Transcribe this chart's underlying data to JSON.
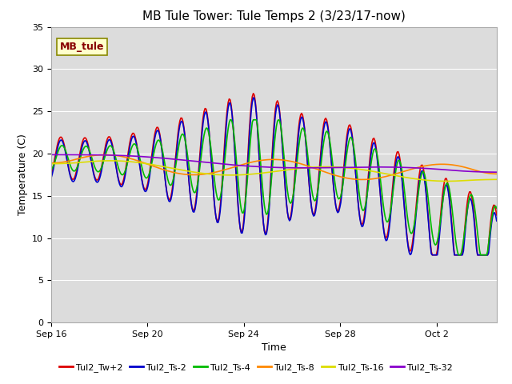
{
  "title": "MB Tule Tower: Tule Temps 2 (3/23/17-now)",
  "xlabel": "Time",
  "ylabel": "Temperature (C)",
  "ylim": [
    0,
    35
  ],
  "yticks": [
    0,
    5,
    10,
    15,
    20,
    25,
    30,
    35
  ],
  "bg_color": "#dcdcdc",
  "fig_color": "#ffffff",
  "mb_tule_label": "MB_tule",
  "mb_tule_color": "#880000",
  "mb_tule_bg": "#ffffcc",
  "mb_tule_border": "#888800",
  "series": [
    {
      "name": "Tul2_Tw+2",
      "color": "#dd0000",
      "lw": 1.2
    },
    {
      "name": "Tul2_Ts-2",
      "color": "#0000cc",
      "lw": 1.2
    },
    {
      "name": "Tul2_Ts-4",
      "color": "#00bb00",
      "lw": 1.2
    },
    {
      "name": "Tul2_Ts-8",
      "color": "#ff8800",
      "lw": 1.2
    },
    {
      "name": "Tul2_Ts-16",
      "color": "#dddd00",
      "lw": 1.2
    },
    {
      "name": "Tul2_Ts-32",
      "color": "#8800cc",
      "lw": 1.2
    }
  ],
  "x_tick_labels": [
    "Sep 16",
    "Sep 20",
    "Sep 24",
    "Sep 28",
    "Oct 2"
  ],
  "x_tick_days": [
    0,
    4,
    8,
    12,
    16
  ],
  "start_day": 0,
  "end_day": 18.5,
  "title_fontsize": 11,
  "axis_label_fontsize": 9,
  "tick_fontsize": 8,
  "legend_fontsize": 8
}
